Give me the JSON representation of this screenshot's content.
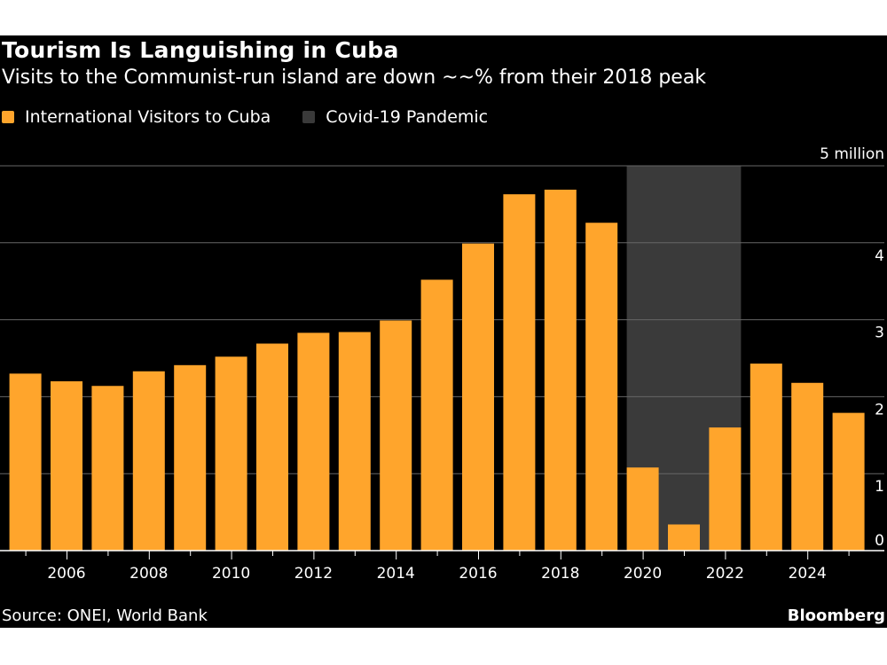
{
  "chart_data": {
    "type": "bar",
    "title": "Tourism Is Languishing in Cuba",
    "subtitle": "Visits to the Communist-run island are down ~~% from their 2018 peak",
    "legend": [
      {
        "label": "International Visitors to Cuba",
        "color": "#ffa52c"
      },
      {
        "label": "Covid-19 Pandemic",
        "color": "#3a3a3a"
      }
    ],
    "legend_placement": "top-left",
    "categories": [
      2005,
      2006,
      2007,
      2008,
      2009,
      2010,
      2011,
      2012,
      2013,
      2014,
      2015,
      2016,
      2017,
      2018,
      2019,
      2020,
      2021,
      2022,
      2023,
      2024,
      2025
    ],
    "values": [
      2.3,
      2.2,
      2.14,
      2.33,
      2.41,
      2.52,
      2.69,
      2.83,
      2.84,
      2.99,
      3.52,
      3.99,
      4.63,
      4.69,
      4.26,
      1.08,
      0.34,
      1.6,
      2.43,
      2.18,
      1.79
    ],
    "unit": "million",
    "shaded_range": {
      "label": "Covid-19 Pandemic",
      "from": 2020,
      "to": 2022
    },
    "ylim": [
      0,
      5
    ],
    "yticks": [
      "0",
      "1",
      "2",
      "3",
      "4",
      "5 million"
    ],
    "xticks": [
      "2006",
      "2008",
      "2010",
      "2012",
      "2014",
      "2016",
      "2018",
      "2020",
      "2022",
      "2024"
    ],
    "grid": true,
    "xlabel": "",
    "ylabel": ""
  },
  "footer": {
    "source": "Source: ONEI, World Bank",
    "brand": "Bloomberg"
  }
}
